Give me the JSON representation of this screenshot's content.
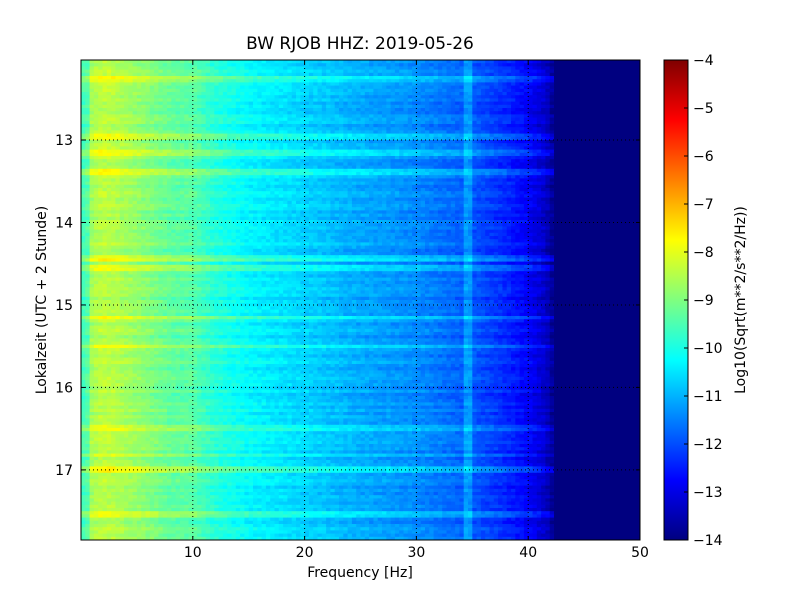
{
  "chart_data": {
    "type": "heatmap",
    "title": "BW RJOB HHZ: 2019-05-26",
    "xlabel": "Frequency [Hz]",
    "ylabel": "Lokalzeit (UTC + 2 Stunde)",
    "xlim": [
      0,
      50
    ],
    "ylim": [
      12.03,
      17.85
    ],
    "y_inverted": true,
    "x_ticks": [
      10,
      20,
      30,
      40,
      50
    ],
    "y_ticks": [
      13,
      14,
      15,
      16,
      17
    ],
    "grid": true,
    "grid_style": "dotted",
    "colormap": "jet",
    "colorbar": {
      "label": "Log10(Sqrt(m**2/s**2/Hz))",
      "range": [
        -14,
        -4
      ],
      "ticks": [
        -14,
        -13,
        -12,
        -11,
        -10,
        -9,
        -8,
        -7,
        -6,
        -5,
        -4
      ]
    },
    "profile_freq_hz": [
      0.5,
      1,
      2,
      3,
      5,
      8,
      10,
      12,
      15,
      20,
      25,
      30,
      35,
      38,
      40,
      41.5,
      42.5,
      45,
      50
    ],
    "profile_log_psd": [
      -9.6,
      -8.6,
      -8.4,
      -8.5,
      -8.8,
      -9.3,
      -9.4,
      -9.9,
      -10.3,
      -10.7,
      -11.1,
      -11.4,
      -11.9,
      -12.4,
      -12.8,
      -13.3,
      -14.0,
      -14.0,
      -14.0
    ],
    "bright_bands_hour": [
      12.25,
      12.95,
      13.15,
      13.4,
      14.45,
      14.55,
      15.15,
      15.5,
      16.5,
      16.82,
      17.0,
      17.55
    ],
    "spectral_line_hz": 34.7
  }
}
